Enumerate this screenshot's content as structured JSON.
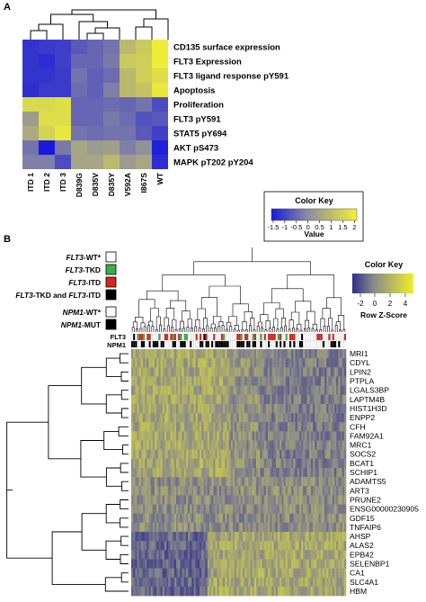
{
  "panel_a": {
    "letter": "A",
    "rows": [
      "CD135 surface expression",
      "FLT3 Expression",
      "FLT3 ligand response pY591",
      "Apoptosis",
      "Proliferation",
      "FLT3 pY591",
      "STAT5 pY694",
      "AKT pS473",
      "MAPK pT202 pY204"
    ],
    "cols": [
      "ITD 1",
      "ITD 2",
      "ITD 3",
      "D839G",
      "D835V",
      "D835Y",
      "V592A",
      "I867S",
      "WT"
    ],
    "values": [
      [
        -1.4,
        -1.3,
        -1.2,
        -0.8,
        -0.6,
        -0.4,
        0.9,
        1.2,
        1.9
      ],
      [
        -1.4,
        -1.5,
        -1.2,
        -0.6,
        -0.6,
        -0.3,
        1.2,
        1.3,
        1.9
      ],
      [
        -1.4,
        -1.4,
        -1.3,
        -0.4,
        -0.7,
        -0.5,
        0.9,
        1.3,
        1.6
      ],
      [
        -1.5,
        -1.3,
        -1.3,
        -0.5,
        -0.7,
        -0.2,
        0.9,
        1.1,
        1.8
      ],
      [
        1.5,
        1.5,
        1.6,
        -0.6,
        -0.6,
        -0.5,
        -0.6,
        -0.4,
        -1.0
      ],
      [
        0.3,
        1.6,
        1.6,
        -0.6,
        -0.6,
        -0.3,
        -0.5,
        -0.9,
        -0.8
      ],
      [
        0.6,
        1.4,
        1.8,
        -0.4,
        -0.5,
        -0.4,
        -0.4,
        -0.8,
        -1.2
      ],
      [
        -0.4,
        -1.8,
        -0.3,
        0.5,
        0.3,
        0.4,
        -0.2,
        0.1,
        -1.7
      ],
      [
        -0.2,
        -0.2,
        -1.0,
        0.5,
        0.5,
        0.9,
        0.3,
        0.5,
        -1.5
      ]
    ],
    "color_key": {
      "title": "Color Key",
      "ticks": [
        "-1.5",
        "-1",
        "-0.5",
        "0",
        "0.5",
        "1",
        "1.5",
        "2"
      ],
      "xlabel": "Value",
      "low_color": "#1a1adb",
      "mid_color": "#8c8ca0",
      "high_color": "#f2f233"
    }
  },
  "panel_b": {
    "letter": "B",
    "legend": [
      {
        "prefix": "FLT3",
        "suffix": "-WT*",
        "color": "#ffffff"
      },
      {
        "prefix": "FLT3",
        "suffix": "-TKD",
        "color": "#3dae49"
      },
      {
        "prefix": "FLT3",
        "suffix": "-ITD",
        "color": "#d9251c"
      },
      {
        "prefix": "FLT3",
        "suffix": "-TKD and ",
        "prefix2": "FLT3",
        "suffix2": "-ITD",
        "color": "#000000"
      },
      {
        "prefix": "NPM1",
        "suffix": "-WT*",
        "color": "#ffffff"
      },
      {
        "prefix": "NPM1",
        "suffix": "-MUT",
        "color": "#000000"
      }
    ],
    "bar_labels": [
      "FLT3",
      "NPM1"
    ],
    "color_key": {
      "title": "Color Key",
      "ticks": [
        "-2",
        "0",
        "2",
        "4"
      ],
      "xlabel": "Row Z-Score"
    },
    "genes": [
      "MRI1",
      "CDYL",
      "LPIN2",
      "PTPLA",
      "LGALS3BP",
      "LAPTM4B",
      "HIST1H3D",
      "ENPP2",
      "CFH",
      "FAM92A1",
      "MRC1",
      "SOCS2",
      "BCAT1",
      "SCHIP1",
      "ADAMTS5",
      "ART3",
      "PRUNE2",
      "ENSG00000230905",
      "GDF15",
      "TNFAIP6",
      "AHSP",
      "ALAS2",
      "EPB42",
      "SELENBP1",
      "CA1",
      "SLC4A1",
      "HBM"
    ]
  }
}
